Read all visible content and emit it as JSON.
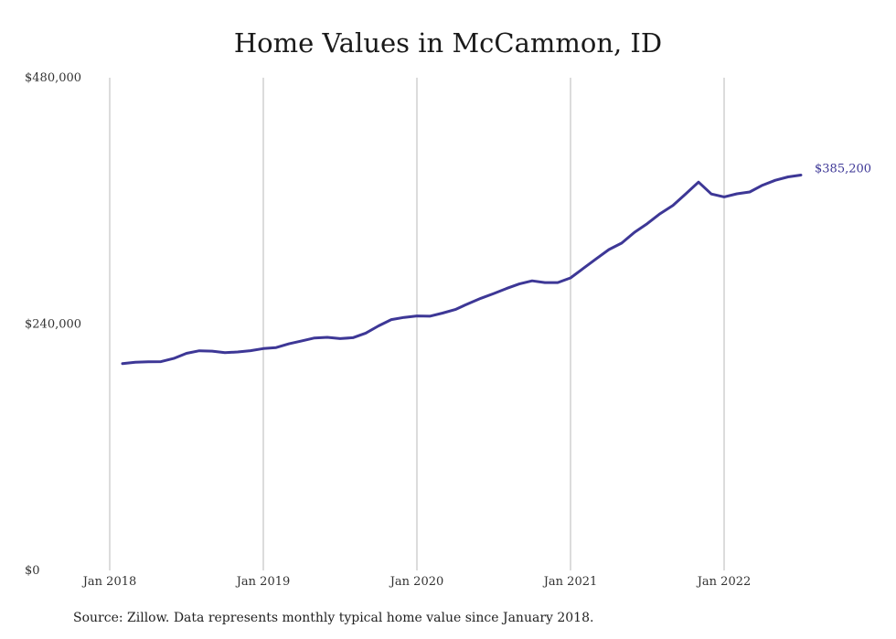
{
  "chart_data": {
    "type": "line",
    "title": "Home Values in McCammon, ID",
    "xlabel": "",
    "ylabel": "",
    "y_tick_labels": [
      "$0",
      "$240,000",
      "$480,000"
    ],
    "y_ticks": [
      0,
      240000,
      480000
    ],
    "ylim": [
      0,
      480000
    ],
    "x_tick_labels": [
      "Jan 2018",
      "Jan 2019",
      "Jan 2020",
      "Jan 2021",
      "Jan 2022"
    ],
    "x_ticks": [
      "2018-01",
      "2019-01",
      "2020-01",
      "2021-01",
      "2022-01"
    ],
    "xlim": [
      "2018-01",
      "2022-08"
    ],
    "grid": "vertical",
    "line_color": "#3d3796",
    "end_label": "$385,200",
    "series": [
      {
        "x": [
          "2018-02",
          "2018-03",
          "2018-04",
          "2018-05",
          "2018-06",
          "2018-07",
          "2018-08",
          "2018-09",
          "2018-10",
          "2018-11",
          "2018-12",
          "2019-01",
          "2019-02",
          "2019-03",
          "2019-04",
          "2019-05",
          "2019-06",
          "2019-07",
          "2019-08",
          "2019-09",
          "2019-10",
          "2019-11",
          "2019-12",
          "2020-01",
          "2020-02",
          "2020-03",
          "2020-04",
          "2020-05",
          "2020-06",
          "2020-07",
          "2020-08",
          "2020-09",
          "2020-10",
          "2020-11",
          "2020-12",
          "2021-01",
          "2021-02",
          "2021-03",
          "2021-04",
          "2021-05",
          "2021-06",
          "2021-07",
          "2021-08",
          "2021-09",
          "2021-10",
          "2021-11",
          "2021-12",
          "2022-01",
          "2022-02",
          "2022-03",
          "2022-04",
          "2022-05",
          "2022-06",
          "2022-07"
        ],
        "values": [
          201500,
          202800,
          203300,
          203400,
          206500,
          211500,
          214000,
          213600,
          212100,
          212800,
          214100,
          216100,
          217100,
          220800,
          223600,
          226500,
          227100,
          225800,
          226700,
          231200,
          238200,
          244400,
          246500,
          247900,
          247700,
          250700,
          254200,
          259900,
          265100,
          269700,
          274600,
          279100,
          282100,
          280400,
          280400,
          285000,
          294200,
          303500,
          312600,
          318900,
          329400,
          337900,
          347600,
          355600,
          366800,
          378300,
          366700,
          363900,
          366900,
          368700,
          375300,
          380100,
          383400,
          385200
        ]
      }
    ]
  },
  "source_note": "Source: Zillow. Data represents monthly typical home value since January 2018."
}
